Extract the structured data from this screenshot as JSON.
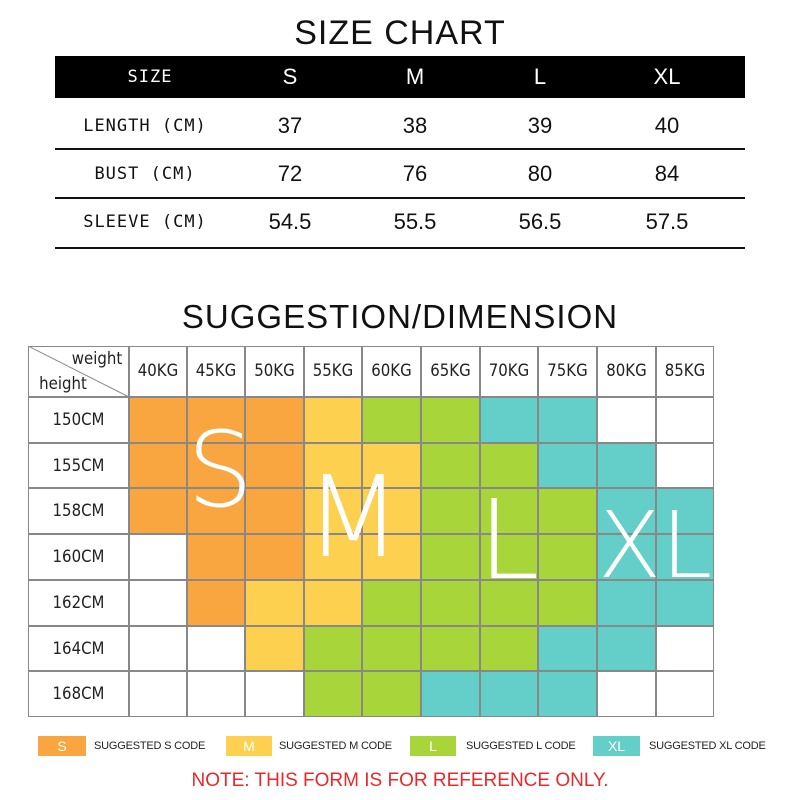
{
  "size_chart": {
    "title": "SIZE CHART",
    "header_label": "SIZE",
    "sizes": [
      "S",
      "M",
      "L",
      "XL"
    ],
    "rows": [
      {
        "label": "LENGTH (CM)",
        "values": [
          "37",
          "38",
          "39",
          "40"
        ]
      },
      {
        "label": "BUST (CM)",
        "values": [
          "72",
          "76",
          "80",
          "84"
        ]
      },
      {
        "label": "SLEEVE (CM)",
        "values": [
          "54.5",
          "55.5",
          "56.5",
          "57.5"
        ]
      }
    ]
  },
  "suggestion": {
    "title": "SUGGESTION/DIMENSION",
    "corner_top": "weight",
    "corner_bottom": "height",
    "weights": [
      "40KG",
      "45KG",
      "50KG",
      "55KG",
      "60KG",
      "65KG",
      "70KG",
      "75KG",
      "80KG",
      "85KG"
    ],
    "heights": [
      "150CM",
      "155CM",
      "158CM",
      "160CM",
      "162CM",
      "164CM",
      "168CM"
    ],
    "grid": [
      [
        "S",
        "S",
        "S",
        "M",
        "L",
        "L",
        "XL",
        "XL",
        "",
        ""
      ],
      [
        "S",
        "S",
        "S",
        "M",
        "M",
        "L",
        "L",
        "XL",
        "XL",
        ""
      ],
      [
        "S",
        "S",
        "S",
        "M",
        "M",
        "L",
        "L",
        "L",
        "XL",
        "XL"
      ],
      [
        "",
        "S",
        "S",
        "M",
        "M",
        "L",
        "L",
        "L",
        "XL",
        "XL"
      ],
      [
        "",
        "S",
        "M",
        "M",
        "L",
        "L",
        "L",
        "L",
        "XL",
        "XL"
      ],
      [
        "",
        "",
        "M",
        "L",
        "L",
        "L",
        "L",
        "XL",
        "XL",
        ""
      ],
      [
        "",
        "",
        "",
        "L",
        "L",
        "XL",
        "XL",
        "XL",
        "",
        ""
      ]
    ],
    "big_letters": [
      "S",
      "M",
      "L",
      "XL"
    ]
  },
  "colors": {
    "S": "#f9a540",
    "M": "#fdd050",
    "L": "#a8d63a",
    "XL": "#63cfc8",
    "note": "#e8292b"
  },
  "legend": [
    {
      "code": "S",
      "text": "SUGGESTED S CODE"
    },
    {
      "code": "M",
      "text": "SUGGESTED M CODE"
    },
    {
      "code": "L",
      "text": "SUGGESTED L CODE"
    },
    {
      "code": "XL",
      "text": "SUGGESTED XL CODE"
    }
  ],
  "note": "NOTE: THIS FORM IS FOR REFERENCE ONLY."
}
